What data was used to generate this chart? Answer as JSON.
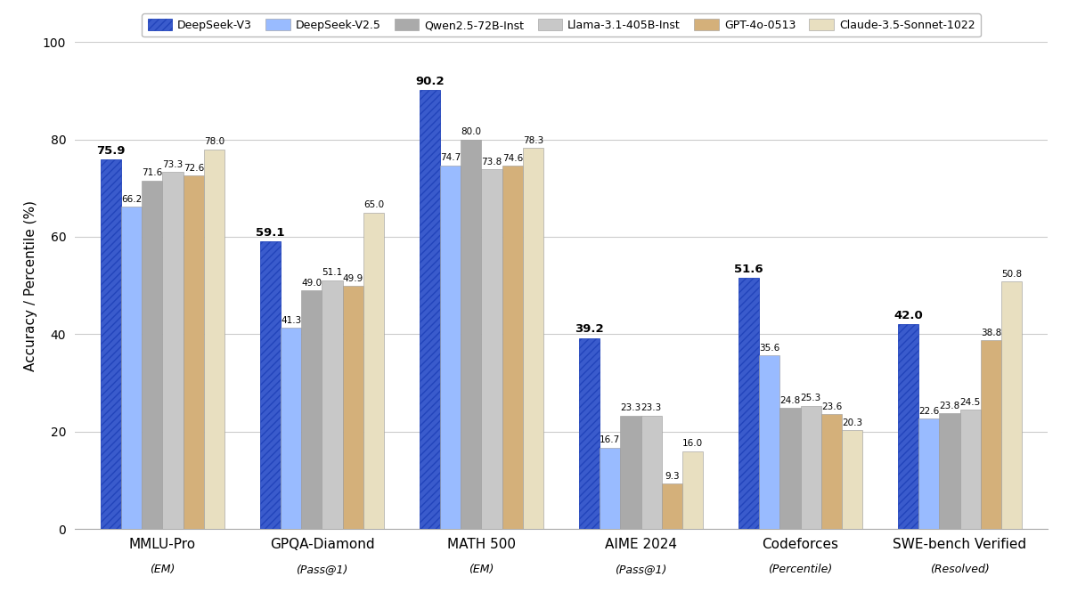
{
  "benchmarks": [
    "MMLU-Pro",
    "GPQA-Diamond",
    "MATH 500",
    "AIME 2024",
    "Codeforces",
    "SWE-bench Verified"
  ],
  "subtitles": [
    "(EM)",
    "(Pass@1)",
    "(EM)",
    "(Pass@1)",
    "(Percentile)",
    "(Resolved)"
  ],
  "models": [
    "DeepSeek-V3",
    "DeepSeek-V2.5",
    "Qwen2.5-72B-Inst",
    "Llama-3.1-405B-Inst",
    "GPT-4o-0513",
    "Claude-3.5-Sonnet-1022"
  ],
  "colors": [
    "#3a5bcc",
    "#99bbff",
    "#aaaaaa",
    "#c8c8c8",
    "#d4b07a",
    "#e8dfc0"
  ],
  "hatch": [
    "////",
    "",
    "",
    "",
    "",
    ""
  ],
  "data": {
    "DeepSeek-V3": [
      75.9,
      59.1,
      90.2,
      39.2,
      51.6,
      42.0
    ],
    "DeepSeek-V2.5": [
      66.2,
      41.3,
      74.7,
      16.7,
      35.6,
      22.6
    ],
    "Qwen2.5-72B-Inst": [
      71.6,
      49.0,
      80.0,
      23.3,
      24.8,
      23.8
    ],
    "Llama-3.1-405B-Inst": [
      73.3,
      51.1,
      73.8,
      23.3,
      25.3,
      24.5
    ],
    "GPT-4o-0513": [
      72.6,
      49.9,
      74.6,
      9.3,
      23.6,
      38.8
    ],
    "Claude-3.5-Sonnet-1022": [
      78.0,
      65.0,
      78.3,
      16.0,
      20.3,
      50.8
    ]
  },
  "ylabel": "Accuracy / Percentile (%)",
  "ylim": [
    0,
    100
  ],
  "yticks": [
    0,
    20,
    40,
    60,
    80,
    100
  ],
  "bar_value_fontsize": 7.5,
  "deepseek_value_fontsize": 9.5,
  "background_color": "#ffffff",
  "grid_color": "#cccccc"
}
